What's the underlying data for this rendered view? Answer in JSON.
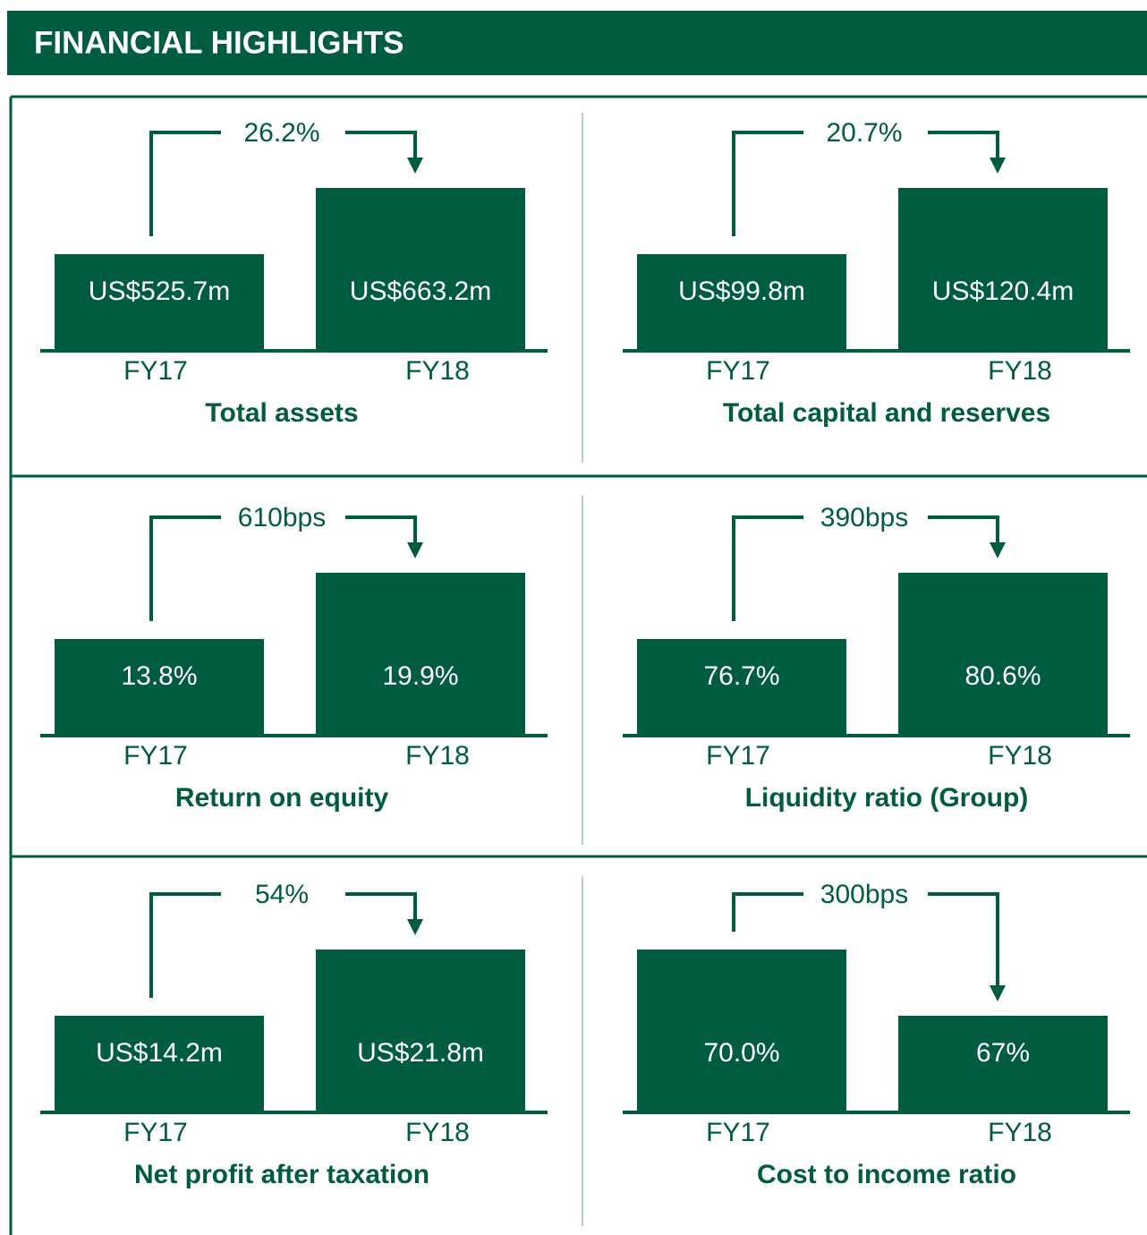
{
  "header": {
    "title": "FINANCIAL HIGHLIGHTS"
  },
  "panels": [
    {
      "title": "Total assets",
      "change": "26.2%",
      "categories": [
        "FY17",
        "FY18"
      ],
      "values": [
        525.7,
        663.2
      ],
      "value_labels": [
        "US$525.7m",
        "US$663.2m"
      ]
    },
    {
      "title": "Total capital and reserves",
      "change": "20.7%",
      "categories": [
        "FY17",
        "FY18"
      ],
      "values": [
        99.8,
        120.4
      ],
      "value_labels": [
        "US$99.8m",
        "US$120.4m"
      ]
    },
    {
      "title": "Return on equity",
      "change": "610bps",
      "categories": [
        "FY17",
        "FY18"
      ],
      "values": [
        13.8,
        19.9
      ],
      "value_labels": [
        "13.8%",
        "19.9%"
      ]
    },
    {
      "title": "Liquidity ratio (Group)",
      "change": "390bps",
      "categories": [
        "FY17",
        "FY18"
      ],
      "values": [
        76.7,
        80.6
      ],
      "value_labels": [
        "76.7%",
        "80.6%"
      ]
    },
    {
      "title": "Net profit after taxation",
      "change": "54%",
      "categories": [
        "FY17",
        "FY18"
      ],
      "values": [
        14.2,
        21.8
      ],
      "value_labels": [
        "US$14.2m",
        "US$21.8m"
      ]
    },
    {
      "title": "Cost to income ratio",
      "change": "300bps",
      "categories": [
        "FY17",
        "FY18"
      ],
      "values": [
        70.0,
        67
      ],
      "value_labels": [
        "70.0%",
        "67%"
      ]
    }
  ],
  "color": "#005c40"
}
